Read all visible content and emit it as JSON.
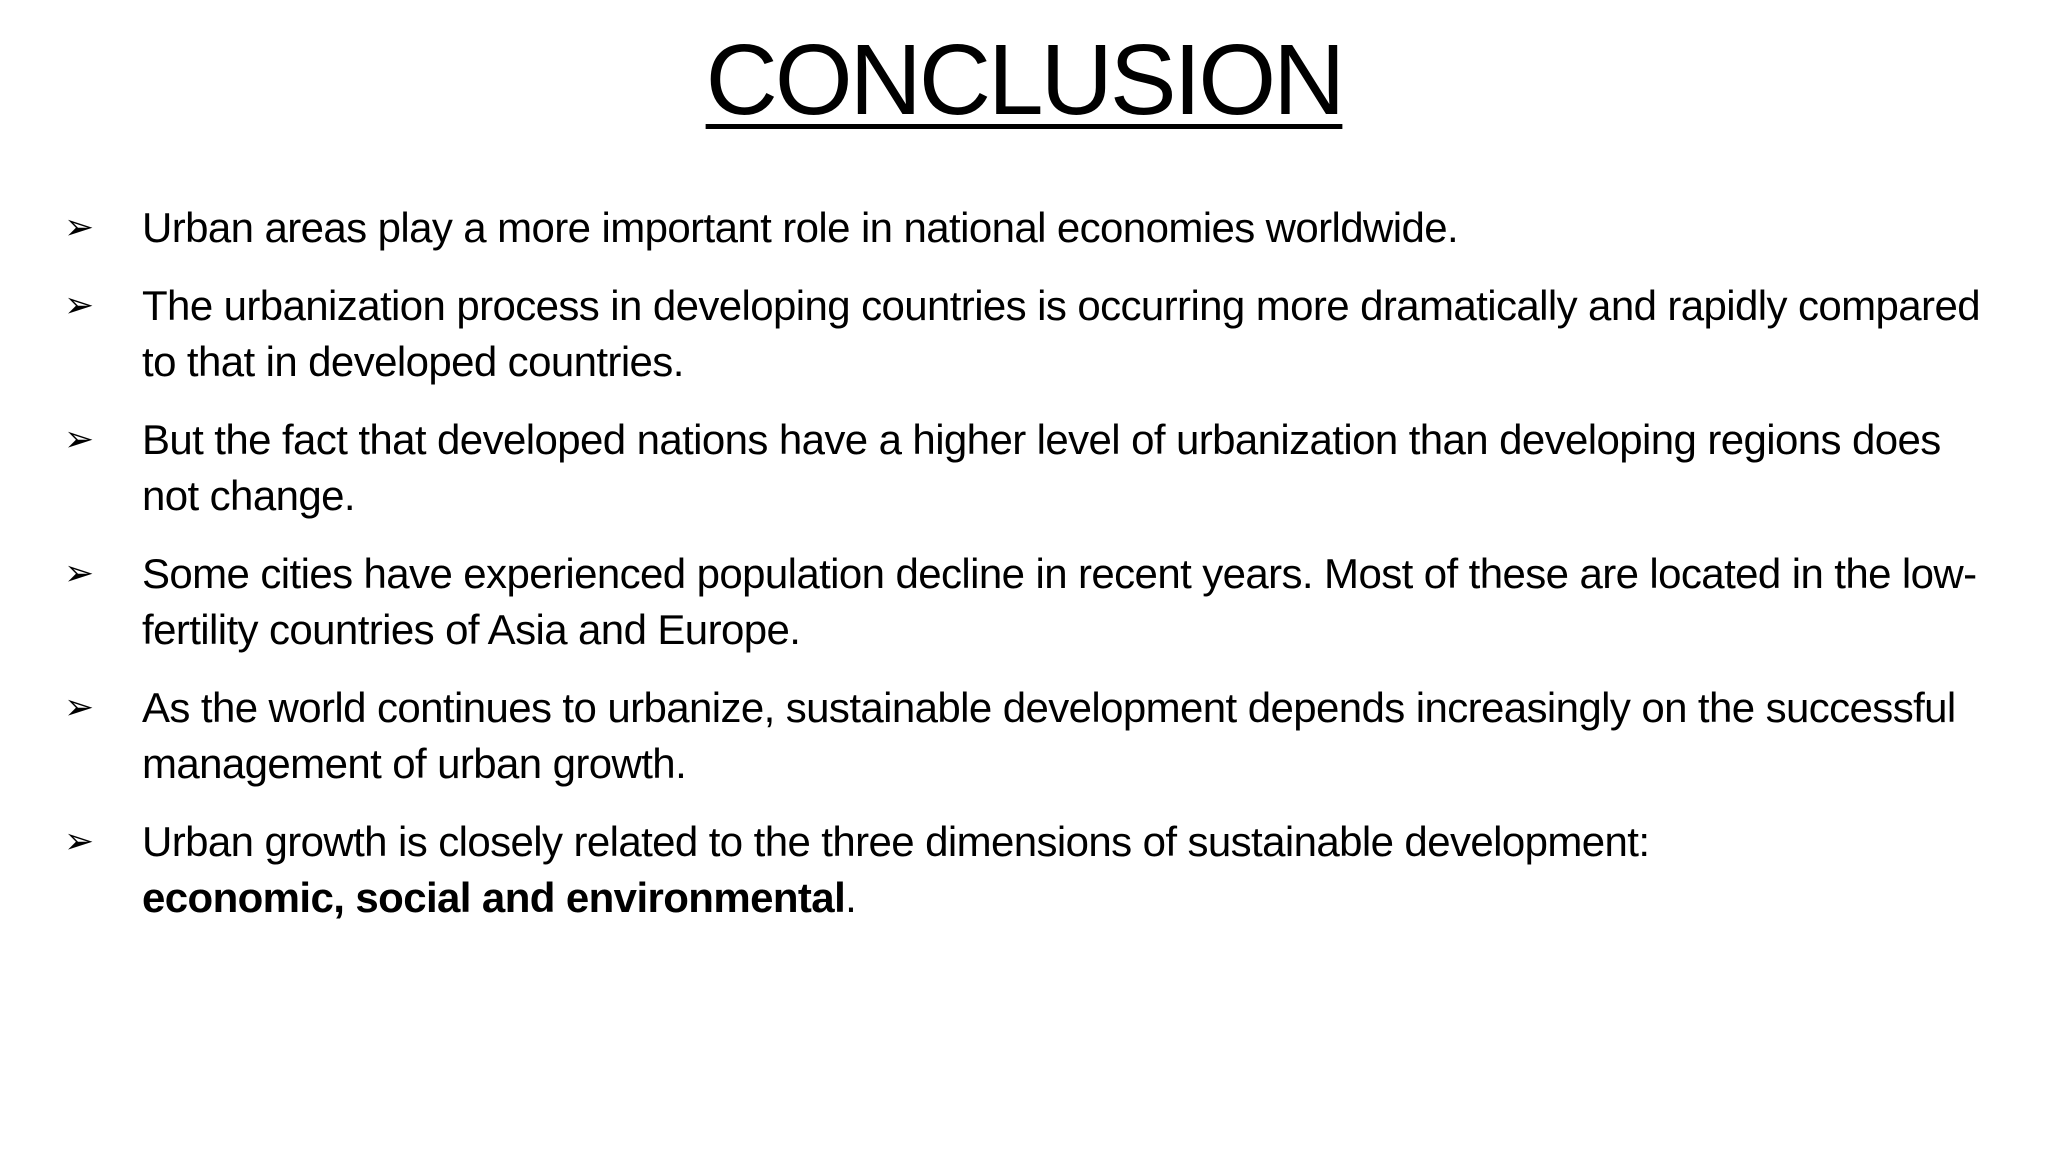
{
  "title": "CONCLUSION",
  "bullet_icon": "arrowhead-bullet-icon",
  "bullet_glyph": "➢",
  "bullets": [
    {
      "text": "Urban areas play a more important role in national economies worldwide."
    },
    {
      "text": "The urbanization process in developing countries is occurring more dramatically and rapidly compared to that in developed countries."
    },
    {
      "text": "But the fact that developed nations have a higher level of urbanization than developing regions does not change."
    },
    {
      "text": "Some cities have experienced population decline in recent years. Most of these are located in the low-fertility countries of Asia and Europe."
    },
    {
      "text": "As the world continues to urbanize, sustainable development depends increasingly on the successful management of urban growth."
    },
    {
      "text": "Urban growth is closely related to the three dimensions of sustainable development:",
      "emphasis": "economic, social and environmental",
      "end": "."
    }
  ]
}
